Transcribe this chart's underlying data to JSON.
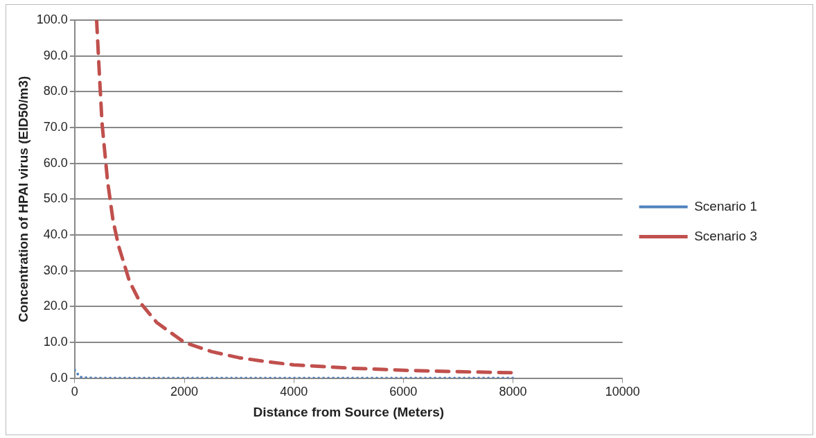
{
  "chart_data": {
    "type": "line",
    "xlabel": "Distance from Source (Meters)",
    "ylabel": "Concentration of HPAI virus (EID50/m3)",
    "xlim": [
      0,
      10000
    ],
    "xticks": [
      0,
      2000,
      4000,
      6000,
      8000,
      10000
    ],
    "ylim": [
      0,
      100
    ],
    "yticks": [
      {
        "value": 0,
        "label": "0.0"
      },
      {
        "value": 10,
        "label": "10.0"
      },
      {
        "value": 20,
        "label": "20.0"
      },
      {
        "value": 30,
        "label": "30.0"
      },
      {
        "value": 40,
        "label": "40.0"
      },
      {
        "value": 50,
        "label": "50.0"
      },
      {
        "value": 60,
        "label": "60.0"
      },
      {
        "value": 70,
        "label": "70.0"
      },
      {
        "value": 80,
        "label": "80.0"
      },
      {
        "value": 90,
        "label": "90.0"
      },
      {
        "value": 100,
        "label": "100.0"
      }
    ],
    "grid": "y",
    "legend": "right",
    "marker": "none",
    "series": [
      {
        "name": "Scenario 1",
        "color": "#4f81bd",
        "line_style": "dotted",
        "x": [
          0,
          100,
          200,
          500,
          1000,
          2000,
          3000,
          4000,
          5000,
          6000,
          7000,
          8000
        ],
        "values": [
          2.2,
          0.3,
          0.1,
          0,
          0,
          0,
          0,
          0,
          0,
          0,
          0,
          0
        ]
      },
      {
        "name": "Scenario 3",
        "color": "#c0504d",
        "line_style": "dashed",
        "x": [
          400,
          450,
          500,
          600,
          700,
          800,
          1000,
          1200,
          1500,
          2000,
          2500,
          3000,
          3500,
          4000,
          5000,
          6000,
          7000,
          8000
        ],
        "values": [
          100,
          85,
          71,
          55,
          44,
          37,
          27,
          21,
          15.5,
          10,
          7.4,
          5.7,
          4.6,
          3.7,
          2.8,
          2.2,
          1.8,
          1.5
        ]
      }
    ]
  }
}
